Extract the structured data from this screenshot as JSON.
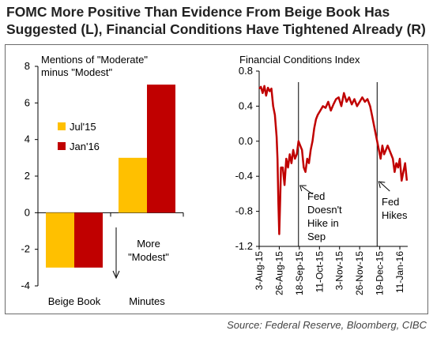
{
  "headline": "FOMC More Positive Than Evidence From Beige Book Has Suggested (L), Financial Conditions Have Tightened Already (R)",
  "source": "Source: Federal Reserve, Bloomberg, CIBC",
  "chart_data": [
    {
      "type": "bar",
      "title": "Mentions of \"Moderate\" minus \"Modest\"",
      "title_lines": [
        "Mentions of \"Moderate\"",
        "minus \"Modest\""
      ],
      "categories": [
        "Beige Book",
        "Minutes"
      ],
      "series": [
        {
          "name": "Jul'15",
          "values": [
            -3,
            3
          ],
          "color": "#FFC000"
        },
        {
          "name": "Jan'16",
          "values": [
            -3,
            7
          ],
          "color": "#C00000"
        }
      ],
      "ylim": [
        -4,
        8
      ],
      "yticks": [
        -4,
        -2,
        0,
        2,
        4,
        6,
        8
      ],
      "legend": "center-left",
      "annotation": {
        "lines": [
          "More",
          "\"Modest\""
        ],
        "arrow": "down"
      }
    },
    {
      "type": "line",
      "title": "Financial Conditions Index",
      "ylim": [
        -1.2,
        0.8
      ],
      "yticks": [
        -1.2,
        -0.8,
        -0.4,
        0.0,
        0.4,
        0.8
      ],
      "ytick_labels": [
        "-1.2",
        "-0.8",
        "-0.4",
        "0.0",
        "0.4",
        "0.8"
      ],
      "xlim": [
        "2015-08-03",
        "2016-01-20"
      ],
      "xticks": [
        "3-Aug-15",
        "26-Aug-15",
        "18-Sep-15",
        "11-Oct-15",
        "3-Nov-15",
        "26-Nov-15",
        "19-Dec-15",
        "11-Jan-16"
      ],
      "xtick_dates": [
        "2015-08-03",
        "2015-08-26",
        "2015-09-18",
        "2015-10-11",
        "2015-11-03",
        "2015-11-26",
        "2015-12-19",
        "2016-01-11"
      ],
      "series": [
        {
          "color": "#C00000",
          "x": [
            "2015-08-03",
            "2015-08-05",
            "2015-08-07",
            "2015-08-09",
            "2015-08-11",
            "2015-08-13",
            "2015-08-15",
            "2015-08-17",
            "2015-08-19",
            "2015-08-21",
            "2015-08-23",
            "2015-08-24",
            "2015-08-25",
            "2015-08-26",
            "2015-08-27",
            "2015-08-28",
            "2015-08-30",
            "2015-09-01",
            "2015-09-03",
            "2015-09-05",
            "2015-09-07",
            "2015-09-09",
            "2015-09-11",
            "2015-09-13",
            "2015-09-15",
            "2015-09-17",
            "2015-09-19",
            "2015-09-21",
            "2015-09-23",
            "2015-09-25",
            "2015-09-27",
            "2015-09-29",
            "2015-10-01",
            "2015-10-03",
            "2015-10-05",
            "2015-10-07",
            "2015-10-09",
            "2015-10-12",
            "2015-10-15",
            "2015-10-18",
            "2015-10-21",
            "2015-10-24",
            "2015-10-27",
            "2015-10-30",
            "2015-11-02",
            "2015-11-05",
            "2015-11-08",
            "2015-11-11",
            "2015-11-14",
            "2015-11-17",
            "2015-11-20",
            "2015-11-23",
            "2015-11-26",
            "2015-11-29",
            "2015-12-02",
            "2015-12-05",
            "2015-12-08",
            "2015-12-10",
            "2015-12-12",
            "2015-12-14",
            "2015-12-16",
            "2015-12-18",
            "2015-12-20",
            "2015-12-22",
            "2015-12-24",
            "2015-12-26",
            "2015-12-28",
            "2015-12-30",
            "2016-01-01",
            "2016-01-03",
            "2016-01-05",
            "2016-01-07",
            "2016-01-09",
            "2016-01-11",
            "2016-01-13",
            "2016-01-15",
            "2016-01-17",
            "2016-01-19"
          ],
          "y": [
            0.6,
            0.62,
            0.55,
            0.63,
            0.52,
            0.61,
            0.57,
            0.6,
            0.4,
            0.3,
            0.05,
            -0.2,
            -0.7,
            -1.06,
            -0.7,
            -0.3,
            -0.3,
            -0.5,
            -0.2,
            -0.3,
            -0.15,
            -0.25,
            -0.1,
            -0.2,
            -0.15,
            0.0,
            -0.05,
            -0.1,
            -0.3,
            -0.35,
            -0.2,
            -0.25,
            -0.1,
            0.0,
            0.15,
            0.25,
            0.3,
            0.35,
            0.4,
            0.38,
            0.45,
            0.35,
            0.42,
            0.48,
            0.5,
            0.4,
            0.55,
            0.45,
            0.5,
            0.42,
            0.48,
            0.4,
            0.45,
            0.5,
            0.45,
            0.48,
            0.4,
            0.3,
            0.2,
            0.1,
            0.0,
            -0.1,
            -0.2,
            -0.05,
            -0.15,
            -0.1,
            -0.05,
            -0.1,
            -0.15,
            -0.2,
            -0.35,
            -0.25,
            -0.3,
            -0.2,
            -0.45,
            -0.35,
            -0.25,
            -0.45
          ]
        }
      ],
      "vlines": [
        "2015-09-17",
        "2015-12-16"
      ],
      "annotations": [
        {
          "lines": [
            "Fed",
            "Doesn't",
            "Hike in",
            "Sep"
          ]
        },
        {
          "lines": [
            "Fed",
            "Hikes"
          ]
        }
      ]
    }
  ]
}
